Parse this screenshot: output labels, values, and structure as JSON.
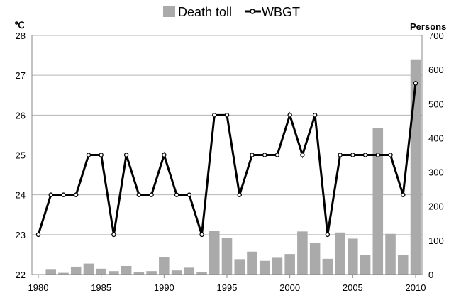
{
  "chart_data": {
    "type": "bar",
    "title": "",
    "legend": {
      "placement": "top",
      "items": [
        {
          "label": "Death toll",
          "kind": "bar"
        },
        {
          "label": "WBGT",
          "kind": "line"
        }
      ]
    },
    "left_axis": {
      "unit": "℃",
      "min": 22,
      "max": 28,
      "ticks": [
        "22",
        "23",
        "24",
        "25",
        "26",
        "27",
        "28"
      ]
    },
    "right_axis": {
      "unit": "Persons",
      "min": 0,
      "max": 700,
      "ticks": [
        "0",
        "100",
        "200",
        "300",
        "400",
        "500",
        "600",
        "700"
      ]
    },
    "x_axis": {
      "min": 1980,
      "max": 2010,
      "ticks": [
        "1980",
        "1985",
        "1990",
        "1995",
        "2000",
        "2005",
        "2010"
      ]
    },
    "x": [
      1980,
      1981,
      1982,
      1983,
      1984,
      1985,
      1986,
      1987,
      1988,
      1989,
      1990,
      1991,
      1992,
      1993,
      1994,
      1995,
      1996,
      1997,
      1998,
      1999,
      2000,
      2001,
      2002,
      2003,
      2004,
      2005,
      2006,
      2007,
      2008,
      2009,
      2010
    ],
    "series": [
      {
        "name": "Death toll",
        "type": "bar",
        "axis": "right",
        "color": "#aaaaaa",
        "values": [
          null,
          16,
          5,
          23,
          32,
          17,
          10,
          25,
          8,
          10,
          50,
          12,
          20,
          8,
          127,
          108,
          45,
          67,
          40,
          49,
          60,
          126,
          92,
          46,
          123,
          105,
          58,
          430,
          119,
          57,
          630
        ]
      },
      {
        "name": "WBGT",
        "type": "line",
        "axis": "left",
        "color": "#000000",
        "values": [
          23,
          24,
          24,
          24,
          25,
          25,
          23,
          25,
          24,
          24,
          25,
          24,
          24,
          23,
          26,
          26,
          24,
          25,
          25,
          25,
          26,
          25,
          26,
          23,
          25,
          25,
          25,
          25,
          25,
          24,
          26.8
        ]
      }
    ],
    "grid": {
      "horizontal": true,
      "vertical": false
    }
  }
}
